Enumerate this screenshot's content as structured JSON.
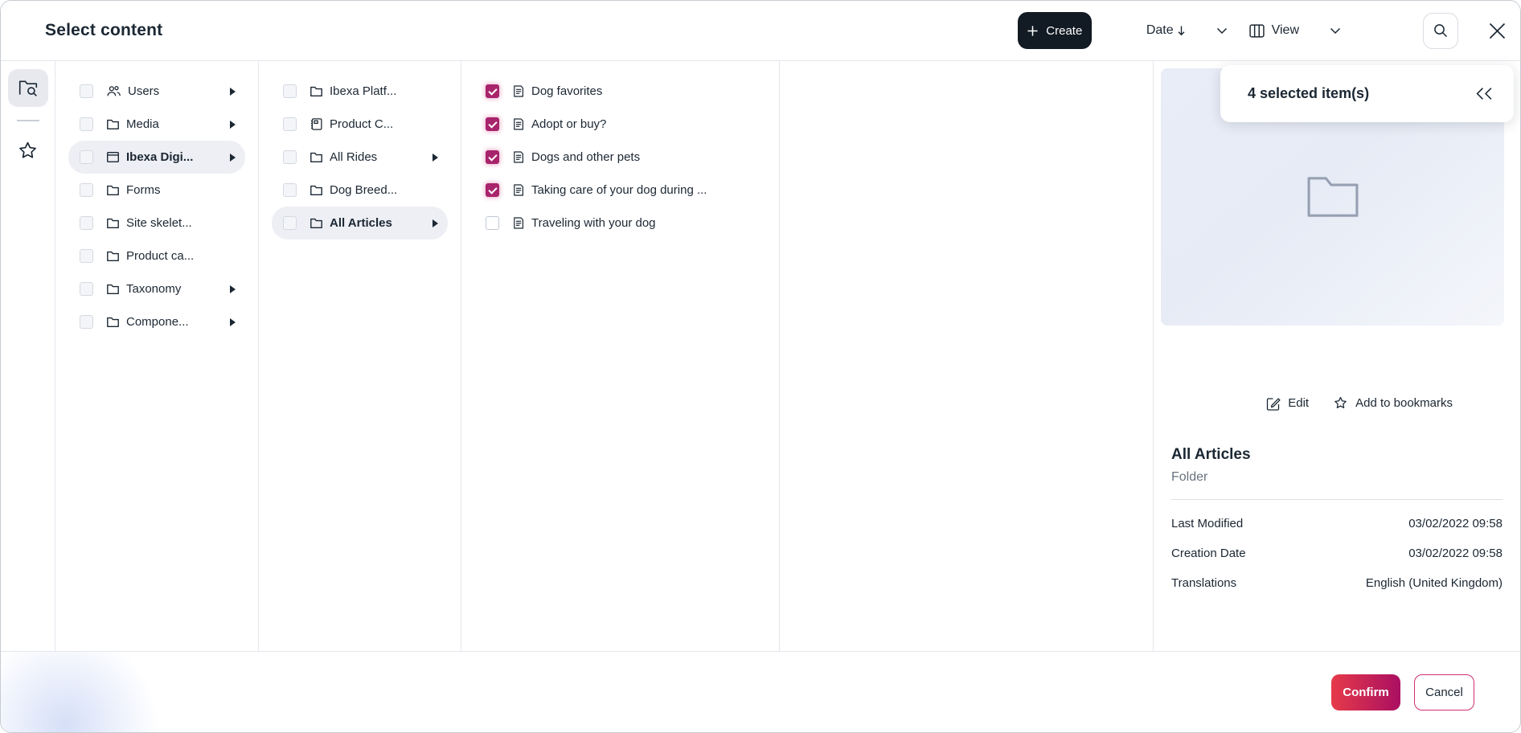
{
  "modal": {
    "title": "Select content"
  },
  "toolbar": {
    "create_label": "Create",
    "sort": {
      "label": "Date",
      "direction": "descending"
    },
    "view": {
      "label": "View"
    },
    "icons": [
      "plus-icon",
      "sort-descending-icon",
      "chevron-down-icon",
      "view-columns-icon",
      "search-icon",
      "close-icon"
    ]
  },
  "rail": {
    "items": [
      {
        "icon": "content-browse-icon",
        "active": true
      },
      {
        "icon": "bookmarks-star-icon",
        "active": false
      }
    ]
  },
  "browser": {
    "columns": [
      {
        "name": "column-1",
        "items": [
          {
            "label": "Users",
            "icon": "users",
            "expandable": true,
            "checked": false,
            "selected": false
          },
          {
            "label": "Media",
            "icon": "folder",
            "expandable": true,
            "checked": false,
            "selected": false
          },
          {
            "label": "Ibexa Digi...",
            "icon": "site",
            "expandable": true,
            "checked": false,
            "selected": true
          },
          {
            "label": "Forms",
            "icon": "folder",
            "expandable": false,
            "checked": false,
            "selected": false
          },
          {
            "label": "Site skelet...",
            "icon": "folder",
            "expandable": false,
            "checked": false,
            "selected": false
          },
          {
            "label": "Product ca...",
            "icon": "folder",
            "expandable": false,
            "checked": false,
            "selected": false
          },
          {
            "label": "Taxonomy",
            "icon": "folder",
            "expandable": true,
            "checked": false,
            "selected": false
          },
          {
            "label": "Compone...",
            "icon": "folder",
            "expandable": true,
            "checked": false,
            "selected": false
          }
        ]
      },
      {
        "name": "column-2",
        "items": [
          {
            "label": "Ibexa Platf...",
            "icon": "folder",
            "expandable": false,
            "checked": false,
            "selected": false
          },
          {
            "label": "Product C...",
            "icon": "catalog",
            "expandable": false,
            "checked": false,
            "selected": false
          },
          {
            "label": "All Rides",
            "icon": "folder",
            "expandable": true,
            "checked": false,
            "selected": false
          },
          {
            "label": "Dog Breed...",
            "icon": "folder",
            "expandable": false,
            "checked": false,
            "selected": false
          },
          {
            "label": "All Articles",
            "icon": "folder",
            "expandable": true,
            "checked": false,
            "selected": true
          }
        ]
      },
      {
        "name": "column-3",
        "items": [
          {
            "label": "Dog favorites",
            "icon": "article",
            "expandable": false,
            "checked": true,
            "selected": false
          },
          {
            "label": "Adopt or buy?",
            "icon": "article",
            "expandable": false,
            "checked": true,
            "selected": false
          },
          {
            "label": "Dogs and other pets",
            "icon": "article",
            "expandable": false,
            "checked": true,
            "selected": false
          },
          {
            "label": "Taking care of your dog during ...",
            "icon": "article",
            "expandable": false,
            "checked": true,
            "selected": false
          },
          {
            "label": "Traveling with your dog",
            "icon": "article",
            "expandable": false,
            "checked": false,
            "selected": false
          }
        ]
      },
      {
        "name": "column-4",
        "items": []
      }
    ]
  },
  "panel": {
    "selected_count_label": "4 selected item(s)",
    "collapse_icon": "double-chevron-left-icon",
    "preview_icon": "folder-icon",
    "actions": {
      "edit": "Edit",
      "bookmark": "Add to bookmarks"
    },
    "item": {
      "title": "All Articles",
      "type": "Folder"
    },
    "meta": [
      {
        "label": "Last Modified",
        "value": "03/02/2022 09:58"
      },
      {
        "label": "Creation Date",
        "value": "03/02/2022 09:58"
      },
      {
        "label": "Translations",
        "value": "English (United Kingdom)"
      }
    ]
  },
  "footer": {
    "confirm_label": "Confirm",
    "cancel_label": "Cancel"
  },
  "colors": {
    "accent_checked": "#a8246b",
    "confirm_gradient_start": "#e63a49",
    "confirm_gradient_end": "#aa0f62",
    "create_bg": "#121a24",
    "selected_row_bg": "#edeff4"
  }
}
